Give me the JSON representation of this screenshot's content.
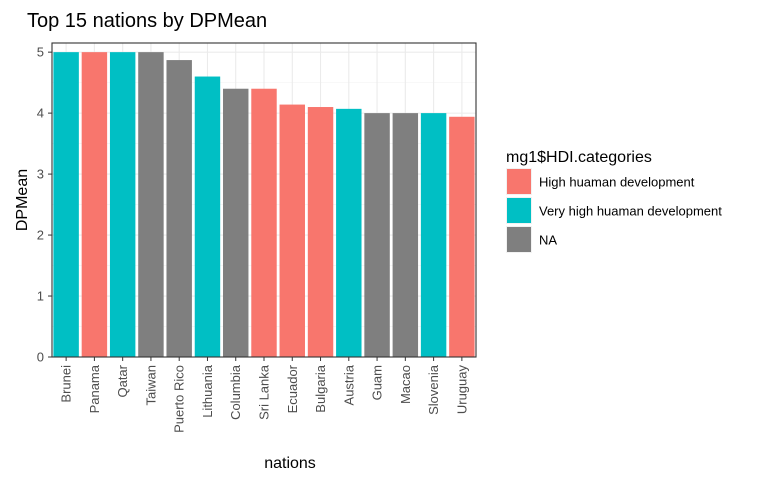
{
  "chart_data": {
    "type": "bar",
    "title": "Top 15 nations by DPMean",
    "xlabel": "nations",
    "ylabel": "DPMean",
    "ylim": [
      0,
      5.15
    ],
    "yticks": [
      0,
      1,
      2,
      3,
      4,
      5
    ],
    "grid": true,
    "categories": [
      "Brunei",
      "Panama",
      "Qatar",
      "Taiwan",
      "Puerto Rico",
      "Lithuania",
      "Columbia",
      "Sri Lanka",
      "Ecuador",
      "Bulgaria",
      "Austria",
      "Guam",
      "Macao",
      "Slovenia",
      "Uruguay"
    ],
    "values": [
      5.0,
      5.0,
      5.0,
      5.0,
      4.87,
      4.6,
      4.4,
      4.4,
      4.14,
      4.1,
      4.07,
      4.0,
      4.0,
      4.0,
      3.94
    ],
    "groups": [
      "Very high huaman development",
      "High huaman development",
      "Very high huaman development",
      "NA",
      "NA",
      "Very high huaman development",
      "NA",
      "High huaman development",
      "High huaman development",
      "High huaman development",
      "Very high huaman development",
      "NA",
      "NA",
      "Very high huaman development",
      "High huaman development"
    ],
    "legend": {
      "title": "mg1$HDI.categories",
      "position": "right",
      "entries": [
        {
          "label": "High huaman development",
          "color": "#F8766D"
        },
        {
          "label": "Very high huaman development",
          "color": "#00BFC4"
        },
        {
          "label": "NA",
          "color": "#7F7F7F"
        }
      ]
    }
  }
}
